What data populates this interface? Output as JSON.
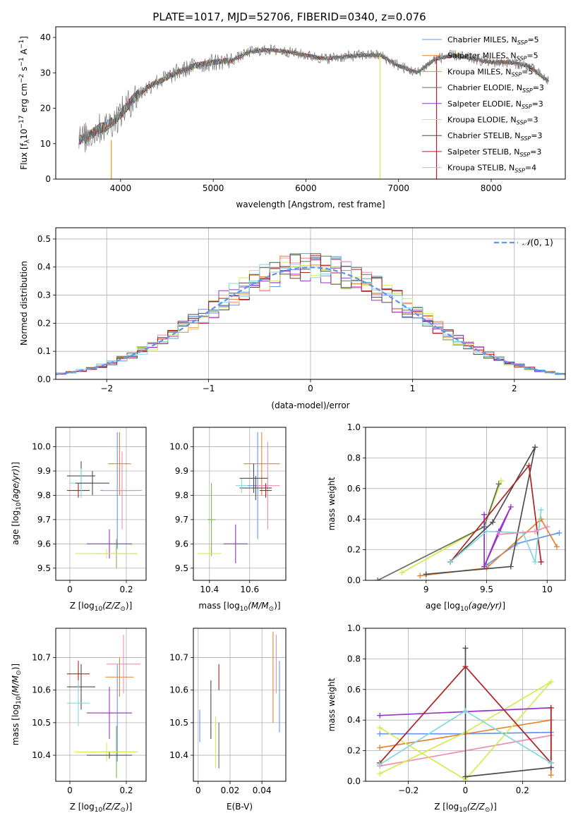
{
  "chart_data": [
    {
      "panel": "spectrum",
      "type": "line",
      "title": "PLATE=1017, MJD=52706, FIBERID=0340, z=0.076",
      "xlabel": "wavelength [Angstrom, rest frame]",
      "ylabel": "Flux [fλ10⁻¹⁷ erg cm⁻² s⁻¹ A⁻¹]",
      "xlim": [
        3300,
        8800
      ],
      "ylim": [
        0,
        43
      ],
      "xticks": [
        4000,
        5000,
        6000,
        7000,
        8000
      ],
      "yticks": [
        0,
        10,
        20,
        30,
        40
      ],
      "grid": false,
      "legend_position": "top-right",
      "continuum": {
        "x": [
          3550,
          3650,
          3750,
          3850,
          3950,
          4050,
          4150,
          4250,
          4350,
          4450,
          4600,
          4800,
          5000,
          5200,
          5400,
          5600,
          5800,
          6000,
          6200,
          6400,
          6600,
          6800,
          7000,
          7200,
          7400,
          7600,
          7800,
          8000,
          8200,
          8400,
          8600
        ],
        "y": [
          11,
          12,
          14,
          15,
          17,
          20,
          23,
          25,
          27,
          28,
          30,
          32,
          33,
          33.5,
          36,
          36.5,
          36,
          35,
          34,
          34.5,
          35,
          35,
          32,
          30,
          34,
          35,
          34,
          33,
          33,
          32,
          28
        ]
      },
      "series": [
        {
          "name": "Chabrier MILES, N$_{SSP}$=5",
          "color": "#6495ed"
        },
        {
          "name": "Salpeter MILES, N$_{SSP}$=5",
          "color": "#e6812f"
        },
        {
          "name": "Kroupa MILES, N$_{SSP}$=5",
          "color": "#e69512"
        },
        {
          "name": "Chabrier ELODIE, N$_{SSP}$=3",
          "color": "#5f7358"
        },
        {
          "name": "Salpeter ELODIE, N$_{SSP}$=3",
          "color": "#9932cc"
        },
        {
          "name": "Kroupa ELODIE, N$_{SSP}$=3",
          "color": "#d7e952"
        },
        {
          "name": "Chabrier STELIB, N$_{SSP}$=3",
          "color": "#4d4d4d"
        },
        {
          "name": "Salpeter STELIB, N$_{SSP}$=3",
          "color": "#b22222"
        },
        {
          "name": "Kroupa STELIB, N$_{SSP}$=4",
          "color": "#83d8e0"
        }
      ],
      "legend_labels": [
        {
          "pre": "Chabrier MILES, N",
          "sub": "SSP",
          "post": "=5"
        },
        {
          "pre": "Salpeter MILES, N",
          "sub": "SSP",
          "post": "=5"
        },
        {
          "pre": "Kroupa MILES, N",
          "sub": "SSP",
          "post": "=5"
        },
        {
          "pre": "Chabrier ELODIE, N",
          "sub": "SSP",
          "post": "=3"
        },
        {
          "pre": "Salpeter ELODIE, N",
          "sub": "SSP",
          "post": "=3"
        },
        {
          "pre": "Kroupa ELODIE, N",
          "sub": "SSP",
          "post": "=3"
        },
        {
          "pre": "Chabrier STELIB, N",
          "sub": "SSP",
          "post": "=3"
        },
        {
          "pre": "Salpeter STELIB, N",
          "sub": "SSP",
          "post": "=3"
        },
        {
          "pre": "Kroupa STELIB, N",
          "sub": "SSP",
          "post": "=4"
        }
      ],
      "spikes": [
        {
          "x": 3900,
          "y0": 0,
          "y1": 11,
          "color": "#e69512"
        },
        {
          "x": 6800,
          "y0": 0,
          "y1": 35,
          "color": "#d7e952"
        },
        {
          "x": 7410,
          "y0": 0,
          "y1": 34,
          "color": "#b22222"
        }
      ]
    },
    {
      "panel": "residuals",
      "type": "histogram",
      "xlabel": "(data-model)/error",
      "ylabel": "Normed distribution",
      "xlim": [
        -2.5,
        2.5
      ],
      "ylim": [
        0,
        0.54
      ],
      "xticks": [
        -2,
        -1,
        0,
        1,
        2
      ],
      "yticks": [
        0.0,
        0.1,
        0.2,
        0.3,
        0.4,
        0.5
      ],
      "grid": true,
      "bin_width": 0.1,
      "gaussian": {
        "name": "N(0,1)",
        "label_script": "𝒩",
        "label_rest": "(0, 1)",
        "color": "#6495ed"
      },
      "legend_position": "top-right"
    },
    {
      "panel": "age_vs_Z",
      "type": "errorbar",
      "xlabel_pre": "Z [log",
      "xlabel_sub": "10",
      "xlabel_mid": "(Z/Z",
      "xlabel_sub2": "⊙",
      "xlabel_post": ")]",
      "ylabel": "age  [log10(age/yr)]",
      "xlim": [
        -0.05,
        0.27
      ],
      "ylim": [
        9.45,
        10.08
      ],
      "xticks": [
        0.0,
        0.2
      ],
      "yticks": [
        9.5,
        9.6,
        9.7,
        9.8,
        9.9,
        10.0
      ],
      "grid": true,
      "points": [
        {
          "x": 0.168,
          "y": 9.82,
          "xerr": 0.06,
          "yerr": 0.24,
          "color": "#6495ed"
        },
        {
          "x": 0.176,
          "y": 9.93,
          "xerr": 0.04,
          "yerr": 0.13,
          "color": "#e6812f"
        },
        {
          "x": 0.185,
          "y": 9.82,
          "xerr": 0.07,
          "yerr": 0.16,
          "color": "#f08cb4"
        },
        {
          "x": 0.165,
          "y": 9.56,
          "xerr": 0.07,
          "yerr": 0.06,
          "color": "#7fb24d"
        },
        {
          "x": 0.14,
          "y": 9.6,
          "xerr": 0.08,
          "yerr": 0.06,
          "color": "#9932cc"
        },
        {
          "x": 0.13,
          "y": 9.56,
          "xerr": 0.11,
          "yerr": 0.02,
          "color": "#d7e952"
        },
        {
          "x": 0.04,
          "y": 9.88,
          "xerr": 0.05,
          "yerr": 0.06,
          "color": "#4d4d4d"
        },
        {
          "x": 0.03,
          "y": 9.82,
          "xerr": 0.04,
          "yerr": 0.03,
          "color": "#b22222"
        },
        {
          "x": 0.04,
          "y": 9.85,
          "xerr": 0.04,
          "yerr": 0.06,
          "color": "#83d8e0"
        },
        {
          "x": 0.08,
          "y": 9.85,
          "xerr": 0.06,
          "yerr": 0.05,
          "color": "#4d4d4d"
        }
      ]
    },
    {
      "panel": "age_vs_mass",
      "type": "errorbar",
      "xlabel_pre": "mass [log",
      "xlabel_sub": "10",
      "xlabel_mid": "(M/M",
      "xlabel_sub2": "⊙",
      "xlabel_post": ")]",
      "xlim": [
        10.32,
        10.78
      ],
      "ylim": [
        9.45,
        10.08
      ],
      "xticks": [
        10.4,
        10.6
      ],
      "yticks": [
        9.5,
        9.6,
        9.7,
        9.8,
        9.9,
        10.0
      ],
      "grid": true,
      "points": [
        {
          "x": 10.64,
          "y": 9.84,
          "xerr": 0.05,
          "yerr": 0.22,
          "color": "#6495ed"
        },
        {
          "x": 10.66,
          "y": 9.93,
          "xerr": 0.09,
          "yerr": 0.13,
          "color": "#e6812f"
        },
        {
          "x": 10.69,
          "y": 9.84,
          "xerr": 0.06,
          "yerr": 0.18,
          "color": "#f08cb4"
        },
        {
          "x": 10.41,
          "y": 9.7,
          "xerr": 0.02,
          "yerr": 0.15,
          "color": "#7fb24d"
        },
        {
          "x": 10.53,
          "y": 9.6,
          "xerr": 0.06,
          "yerr": 0.08,
          "color": "#9932cc"
        },
        {
          "x": 10.4,
          "y": 9.56,
          "xerr": 0.06,
          "yerr": 0.02,
          "color": "#d7e952"
        },
        {
          "x": 10.63,
          "y": 9.83,
          "xerr": 0.08,
          "yerr": 0.05,
          "color": "#4d4d4d"
        },
        {
          "x": 10.68,
          "y": 9.82,
          "xerr": 0.03,
          "yerr": 0.03,
          "color": "#b22222"
        },
        {
          "x": 10.56,
          "y": 9.84,
          "xerr": 0.03,
          "yerr": 0.03,
          "color": "#83d8e0"
        },
        {
          "x": 10.62,
          "y": 9.87,
          "xerr": 0.07,
          "yerr": 0.06,
          "color": "#4d4d4d"
        }
      ]
    },
    {
      "panel": "massweight_vs_age",
      "type": "line",
      "xlabel": "age  [log10(age/yr)]",
      "ylabel": "mass weight",
      "xlim": [
        8.5,
        10.15
      ],
      "ylim": [
        0,
        1.0
      ],
      "xticks": [
        9.0,
        9.5,
        10.0
      ],
      "yticks": [
        0.0,
        0.2,
        0.4,
        0.6,
        0.8,
        1.0
      ],
      "grid": true,
      "series": [
        {
          "color": "#6495ed",
          "x": [
            9.5,
            9.75,
            10.1
          ],
          "y": [
            0.1,
            0.24,
            0.31
          ]
        },
        {
          "color": "#e6812f",
          "x": [
            8.95,
            9.5,
            9.95,
            10.08
          ],
          "y": [
            0.03,
            0.08,
            0.4,
            0.22
          ]
        },
        {
          "color": "#d7e952",
          "x": [
            8.8,
            9.48,
            9.62,
            9.62
          ],
          "y": [
            0.05,
            0.35,
            0.65,
            0.65
          ]
        },
        {
          "color": "#5f7358",
          "x": [
            8.6,
            9.48,
            9.6
          ],
          "y": [
            0.0,
            0.35,
            0.63
          ]
        },
        {
          "color": "#9932cc",
          "x": [
            9.48,
            9.48,
            9.6,
            9.7,
            9.48
          ],
          "y": [
            0.43,
            0.09,
            0.32,
            0.48,
            0.09
          ]
        },
        {
          "color": "#4d4d4d",
          "x": [
            9.0,
            9.7,
            9.9,
            9.55,
            9.2
          ],
          "y": [
            0.04,
            0.09,
            0.87,
            0.38,
            0.12
          ]
        },
        {
          "color": "#b22222",
          "x": [
            9.2,
            9.85,
            9.95
          ],
          "y": [
            0.12,
            0.75,
            0.12
          ]
        },
        {
          "color": "#83d8e0",
          "x": [
            9.2,
            9.5,
            9.8,
            9.9,
            9.95
          ],
          "y": [
            0.12,
            0.32,
            0.31,
            0.12,
            0.46
          ]
        },
        {
          "color": "#f08cb4",
          "x": [
            9.6,
            9.9,
            10.0
          ],
          "y": [
            0.3,
            0.32,
            0.35
          ]
        }
      ]
    },
    {
      "panel": "mass_vs_Z",
      "type": "errorbar",
      "xlabel_pre": "Z [log",
      "xlabel_sub": "10",
      "xlabel_mid": "(Z/Z",
      "xlabel_sub2": "⊙",
      "xlabel_post": ")]",
      "ylabel": "mass [log10(M/M⊙)]",
      "xlim": [
        -0.05,
        0.27
      ],
      "ylim": [
        10.32,
        10.79
      ],
      "xticks": [
        0.0,
        0.2
      ],
      "yticks": [
        10.4,
        10.5,
        10.6,
        10.7
      ],
      "grid": true,
      "points": [
        {
          "x": 0.168,
          "y": 10.53,
          "xerr": 0.05,
          "yerr": 0.15,
          "color": "#6495ed"
        },
        {
          "x": 0.176,
          "y": 10.64,
          "xerr": 0.05,
          "yerr": 0.06,
          "color": "#e6812f"
        },
        {
          "x": 0.19,
          "y": 10.68,
          "xerr": 0.06,
          "yerr": 0.09,
          "color": "#f08cb4"
        },
        {
          "x": 0.165,
          "y": 10.41,
          "xerr": 0.07,
          "yerr": 0.08,
          "color": "#7fb24d"
        },
        {
          "x": 0.14,
          "y": 10.53,
          "xerr": 0.08,
          "yerr": 0.08,
          "color": "#9932cc"
        },
        {
          "x": 0.13,
          "y": 10.41,
          "xerr": 0.11,
          "yerr": 0.03,
          "color": "#d7e952"
        },
        {
          "x": 0.04,
          "y": 10.61,
          "xerr": 0.05,
          "yerr": 0.07,
          "color": "#4d4d4d"
        },
        {
          "x": 0.03,
          "y": 10.65,
          "xerr": 0.04,
          "yerr": 0.04,
          "color": "#b22222"
        },
        {
          "x": 0.03,
          "y": 10.56,
          "xerr": 0.04,
          "yerr": 0.07,
          "color": "#83d8e0"
        },
        {
          "x": 0.14,
          "y": 10.4,
          "xerr": 0.08,
          "yerr": 0.01,
          "color": "#4d4d4d"
        }
      ]
    },
    {
      "panel": "mass_vs_ebv",
      "type": "errorbar",
      "xlabel": "E(B-V)",
      "xlim": [
        -0.003,
        0.055
      ],
      "ylim": [
        10.32,
        10.79
      ],
      "xticks": [
        0.0,
        0.02,
        0.04
      ],
      "yticks": [
        10.4,
        10.5,
        10.6,
        10.7
      ],
      "grid": true,
      "points": [
        {
          "x": 0.051,
          "y": 10.58,
          "xerr": 0,
          "yerr": 0.11,
          "color": "#6495ed"
        },
        {
          "x": 0.047,
          "y": 10.64,
          "xerr": 0,
          "yerr": 0.14,
          "color": "#e6812f"
        },
        {
          "x": 0.049,
          "y": 10.68,
          "xerr": 0,
          "yerr": 0.09,
          "color": "#f08cb4"
        },
        {
          "x": 0.001,
          "y": 10.49,
          "xerr": 0,
          "yerr": 0.05,
          "color": "#6495ed"
        },
        {
          "x": 0.008,
          "y": 10.54,
          "xerr": 0,
          "yerr": 0.09,
          "color": "#4d4d4d"
        },
        {
          "x": 0.011,
          "y": 10.44,
          "xerr": 0,
          "yerr": 0.08,
          "color": "#d7e952"
        },
        {
          "x": 0.013,
          "y": 10.43,
          "xerr": 0,
          "yerr": 0.07,
          "color": "#5f7358"
        },
        {
          "x": 0.013,
          "y": 10.64,
          "xerr": 0,
          "yerr": 0.04,
          "color": "#b22222"
        }
      ]
    },
    {
      "panel": "massweight_vs_Z",
      "type": "line",
      "xlabel_pre": "Z [log",
      "xlabel_sub": "10",
      "xlabel_mid": "(Z/Z",
      "xlabel_sub2": "⊙",
      "xlabel_post": ")]",
      "ylabel": "mass weight",
      "xlim": [
        -0.35,
        0.35
      ],
      "ylim": [
        0,
        1.0
      ],
      "xticks": [
        -0.2,
        0.0,
        0.2
      ],
      "yticks": [
        0.0,
        0.2,
        0.4,
        0.6,
        0.8,
        1.0
      ],
      "grid": true,
      "series": [
        {
          "color": "#6495ed",
          "x": [
            -0.3,
            0.0,
            0.3
          ],
          "y": [
            0.31,
            0.31,
            0.32
          ]
        },
        {
          "color": "#e6812f",
          "x": [
            -0.3,
            0.3,
            0.3
          ],
          "y": [
            0.22,
            0.4,
            0.04
          ]
        },
        {
          "color": "#f08cb4",
          "x": [
            -0.3,
            0.3
          ],
          "y": [
            0.1,
            0.3
          ]
        },
        {
          "color": "#d7e952",
          "x": [
            -0.3,
            0.0,
            0.3,
            0.0,
            -0.3
          ],
          "y": [
            0.35,
            0.01,
            0.65,
            0.32,
            0.05
          ]
        },
        {
          "color": "#9932cc",
          "x": [
            -0.3,
            0.3,
            0.3
          ],
          "y": [
            0.43,
            0.48,
            0.09
          ]
        },
        {
          "color": "#4d4d4d",
          "x": [
            0.0,
            0.0,
            0.3,
            0.0
          ],
          "y": [
            0.87,
            0.03,
            0.09,
            0.03
          ]
        },
        {
          "color": "#b22222",
          "x": [
            -0.3,
            0.0,
            0.3,
            0.3
          ],
          "y": [
            0.12,
            0.75,
            0.12,
            0.48
          ]
        },
        {
          "color": "#83d8e0",
          "x": [
            -0.3,
            0.0,
            0.3
          ],
          "y": [
            0.11,
            0.46,
            0.12
          ]
        }
      ]
    }
  ]
}
